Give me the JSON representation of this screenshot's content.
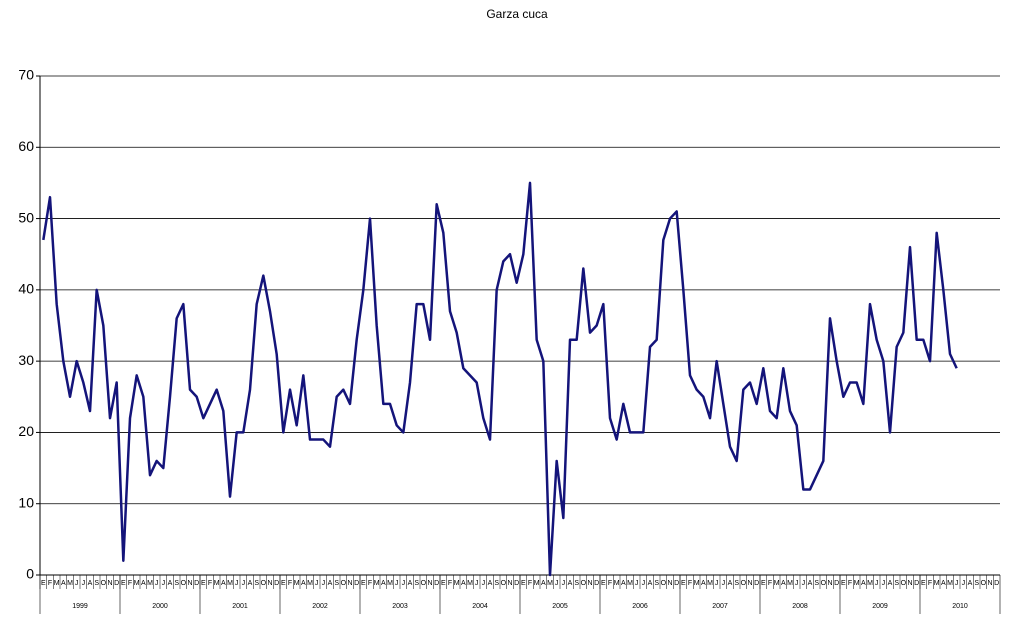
{
  "chart_data": {
    "type": "line",
    "title": "Garza cuca",
    "categories": [
      "E",
      "F",
      "M",
      "A",
      "M",
      "J",
      "J",
      "A",
      "S",
      "O",
      "N",
      "D",
      "E",
      "F",
      "M",
      "A",
      "M",
      "J",
      "J",
      "A",
      "S",
      "O",
      "N",
      "D",
      "E",
      "F",
      "M",
      "A",
      "M",
      "J",
      "J",
      "A",
      "S",
      "O",
      "N",
      "D",
      "E",
      "F",
      "M",
      "A",
      "M",
      "J",
      "J",
      "A",
      "S",
      "O",
      "N",
      "D",
      "E",
      "F",
      "M",
      "A",
      "M",
      "J",
      "J",
      "A",
      "S",
      "O",
      "N",
      "D",
      "E",
      "F",
      "M",
      "A",
      "M",
      "J",
      "J",
      "A",
      "S",
      "O",
      "N",
      "D",
      "E",
      "F",
      "M",
      "A",
      "M",
      "J",
      "J",
      "A",
      "S",
      "O",
      "N",
      "D",
      "E",
      "F",
      "M",
      "A",
      "M",
      "J",
      "J",
      "A",
      "S",
      "O",
      "N",
      "D",
      "E",
      "F",
      "M",
      "A",
      "M",
      "J",
      "J",
      "A",
      "S",
      "O",
      "N",
      "D",
      "E",
      "F",
      "M",
      "A",
      "M",
      "J",
      "J",
      "A",
      "S",
      "O",
      "N",
      "D",
      "E",
      "F",
      "M",
      "A",
      "M",
      "J",
      "J",
      "A",
      "S",
      "O",
      "N",
      "D",
      "E",
      "F",
      "M",
      "A",
      "M",
      "J",
      "J",
      "A",
      "S",
      "O",
      "N",
      "D"
    ],
    "year_labels": [
      "1999",
      "2000",
      "2001",
      "2002",
      "2003",
      "2004",
      "2005",
      "2006",
      "2007",
      "2008",
      "2009",
      "2010"
    ],
    "series": [
      {
        "color": "#14147a",
        "values": [
          47,
          53,
          38,
          30,
          25,
          30,
          27,
          23,
          40,
          35,
          22,
          27,
          2,
          22,
          28,
          25,
          14,
          16,
          15,
          25,
          36,
          38,
          26,
          25,
          22,
          24,
          26,
          23,
          11,
          20,
          20,
          26,
          38,
          42,
          37,
          31,
          20,
          26,
          21,
          28,
          19,
          19,
          19,
          18,
          25,
          26,
          24,
          33,
          40,
          50,
          35,
          24,
          24,
          21,
          20,
          27,
          38,
          38,
          33,
          52,
          48,
          37,
          34,
          29,
          28,
          27,
          22,
          19,
          40,
          44,
          45,
          41,
          45,
          55,
          33,
          30,
          0,
          16,
          8,
          33,
          33,
          43,
          34,
          35,
          38,
          22,
          19,
          24,
          20,
          20,
          20,
          32,
          33,
          47,
          50,
          51,
          40,
          28,
          26,
          25,
          22,
          30,
          24,
          18,
          16,
          26,
          27,
          24,
          29,
          23,
          22,
          29,
          23,
          21,
          12,
          12,
          14,
          16,
          36,
          30,
          25,
          27,
          27,
          24,
          38,
          33,
          30,
          20,
          32,
          34,
          46,
          33,
          33,
          30,
          48,
          40,
          31,
          29,
          null,
          null,
          null,
          null,
          null,
          null
        ]
      }
    ],
    "ylim": [
      0,
      70
    ],
    "yticks": [
      0,
      10,
      20,
      30,
      40,
      50,
      60,
      70
    ],
    "grid": true
  }
}
